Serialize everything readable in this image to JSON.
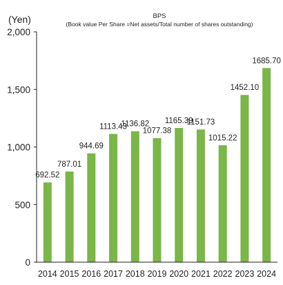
{
  "chart_data": {
    "type": "bar",
    "title": "BPS",
    "subtitle": "(Book value Per Share =Net assets/Total number of shares outstanding)",
    "ylabel": "(Yen)",
    "xlabel": "",
    "categories": [
      "2014",
      "2015",
      "2016",
      "2017",
      "2018",
      "2019",
      "2020",
      "2021",
      "2022",
      "2023",
      "2024"
    ],
    "values": [
      692.52,
      787.01,
      944.69,
      1113.43,
      1136.82,
      1077.38,
      1165.39,
      1151.73,
      1015.22,
      1452.1,
      1685.7
    ],
    "data_labels": [
      "692.52",
      "787.01",
      "944.69",
      "1113.43",
      "1136.82",
      "1077.38",
      "1165.39",
      "1151.73",
      "1015.22",
      "1452.10",
      "1685.70"
    ],
    "yticks": [
      0,
      500,
      1000,
      1500,
      2000
    ],
    "ytick_labels": [
      "0",
      "500",
      "1,000",
      "1,500",
      "2,000"
    ],
    "ylim": [
      0,
      2000
    ],
    "grid": false,
    "legend": "none",
    "colors": {
      "bar": "#7ab648",
      "axis": "#222222",
      "text": "#222222"
    }
  }
}
